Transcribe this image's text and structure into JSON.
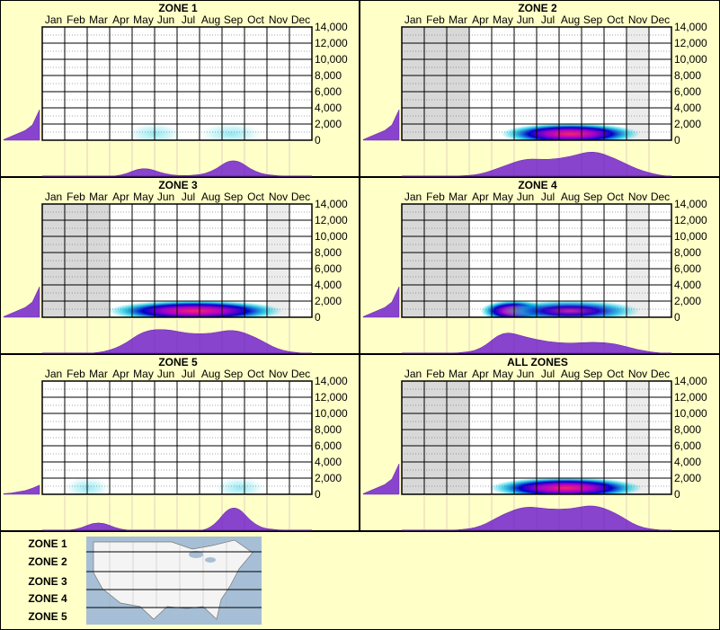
{
  "months": [
    "Jan",
    "Feb",
    "Mar",
    "Apr",
    "May",
    "Jun",
    "Jul",
    "Aug",
    "Sep",
    "Oct",
    "Nov",
    "Dec"
  ],
  "y_ticks": [
    "14,000",
    "12,000",
    "10,000",
    "8,000",
    "6,000",
    "4,000",
    "2,000",
    "0"
  ],
  "colors": {
    "background": "#ffffc8",
    "violet": "#8844cc",
    "grid": "#000000",
    "shade_dark": "#d8d8d8",
    "shade_light": "#ececec",
    "map_water": "#a6bfd6",
    "map_land": "#f4f4f4"
  },
  "chart_data": [
    {
      "type": "heatmap",
      "title": "ZONE 1",
      "shaded_months": [],
      "light_shaded_months": [],
      "elevation_profile": [
        2,
        12,
        22,
        32,
        50,
        100
      ],
      "month_density": [
        0,
        0,
        0,
        0,
        0.3,
        0.05,
        0,
        0.1,
        0.6,
        0.1,
        0,
        0
      ],
      "heat": [
        {
          "month": 5.0,
          "width": 1.2,
          "intensity": 0.25
        },
        {
          "month": 8.4,
          "width": 1.6,
          "intensity": 0.35
        }
      ],
      "ylim": [
        0,
        14000
      ]
    },
    {
      "type": "heatmap",
      "title": "ZONE 2",
      "shaded_months": [
        1,
        2,
        3
      ],
      "light_shaded_months": [
        11
      ],
      "elevation_profile": [
        2,
        12,
        22,
        32,
        50,
        100
      ],
      "month_density": [
        0,
        0,
        0,
        0.05,
        0.3,
        0.55,
        0.5,
        0.6,
        0.8,
        0.55,
        0.2,
        0.02
      ],
      "heat": [
        {
          "month": 7.5,
          "width": 5.0,
          "intensity": 1.0
        }
      ],
      "ylim": [
        0,
        14000
      ]
    },
    {
      "type": "heatmap",
      "title": "ZONE 3",
      "shaded_months": [
        1,
        2,
        3
      ],
      "light_shaded_months": [
        11
      ],
      "elevation_profile": [
        2,
        12,
        22,
        32,
        50,
        100
      ],
      "month_density": [
        0,
        0,
        0,
        0.2,
        0.7,
        0.75,
        0.6,
        0.6,
        0.75,
        0.5,
        0.1,
        0
      ],
      "heat": [
        {
          "month": 6.8,
          "width": 6.6,
          "intensity": 1.0
        }
      ],
      "ylim": [
        0,
        14000
      ]
    },
    {
      "type": "heatmap",
      "title": "ZONE 4",
      "shaded_months": [
        1,
        2,
        3
      ],
      "light_shaded_months": [
        11
      ],
      "elevation_profile": [
        2,
        12,
        22,
        32,
        50,
        100
      ],
      "month_density": [
        0,
        0,
        0,
        0.1,
        0.7,
        0.5,
        0.35,
        0.3,
        0.35,
        0.3,
        0.1,
        0
      ],
      "heat": [
        {
          "month": 5.0,
          "width": 1.8,
          "intensity": 1.0
        },
        {
          "month": 7.5,
          "width": 5.0,
          "intensity": 0.7
        }
      ],
      "ylim": [
        0,
        14000
      ]
    },
    {
      "type": "heatmap",
      "title": "ZONE 5",
      "shaded_months": [],
      "light_shaded_months": [],
      "elevation_profile": [
        2,
        4,
        8,
        12,
        20,
        30
      ],
      "month_density": [
        0,
        0,
        0.3,
        0,
        0,
        0,
        0,
        0,
        0.9,
        0.1,
        0,
        0
      ],
      "heat": [
        {
          "month": 2.0,
          "width": 0.8,
          "intensity": 0.15
        },
        {
          "month": 8.8,
          "width": 1.0,
          "intensity": 0.25
        }
      ],
      "ylim": [
        0,
        14000
      ]
    },
    {
      "type": "heatmap",
      "title": "ALL ZONES",
      "shaded_months": [
        1,
        2,
        3
      ],
      "light_shaded_months": [
        11
      ],
      "elevation_profile": [
        2,
        12,
        22,
        32,
        50,
        100
      ],
      "month_density": [
        0,
        0,
        0,
        0.1,
        0.5,
        0.75,
        0.65,
        0.65,
        0.8,
        0.55,
        0.1,
        0
      ],
      "heat": [
        {
          "month": 7.3,
          "width": 5.6,
          "intensity": 1.0
        }
      ],
      "ylim": [
        0,
        14000
      ]
    }
  ],
  "legend": {
    "zones": [
      "ZONE 1",
      "ZONE 2",
      "ZONE 3",
      "ZONE 4",
      "ZONE 5"
    ]
  }
}
